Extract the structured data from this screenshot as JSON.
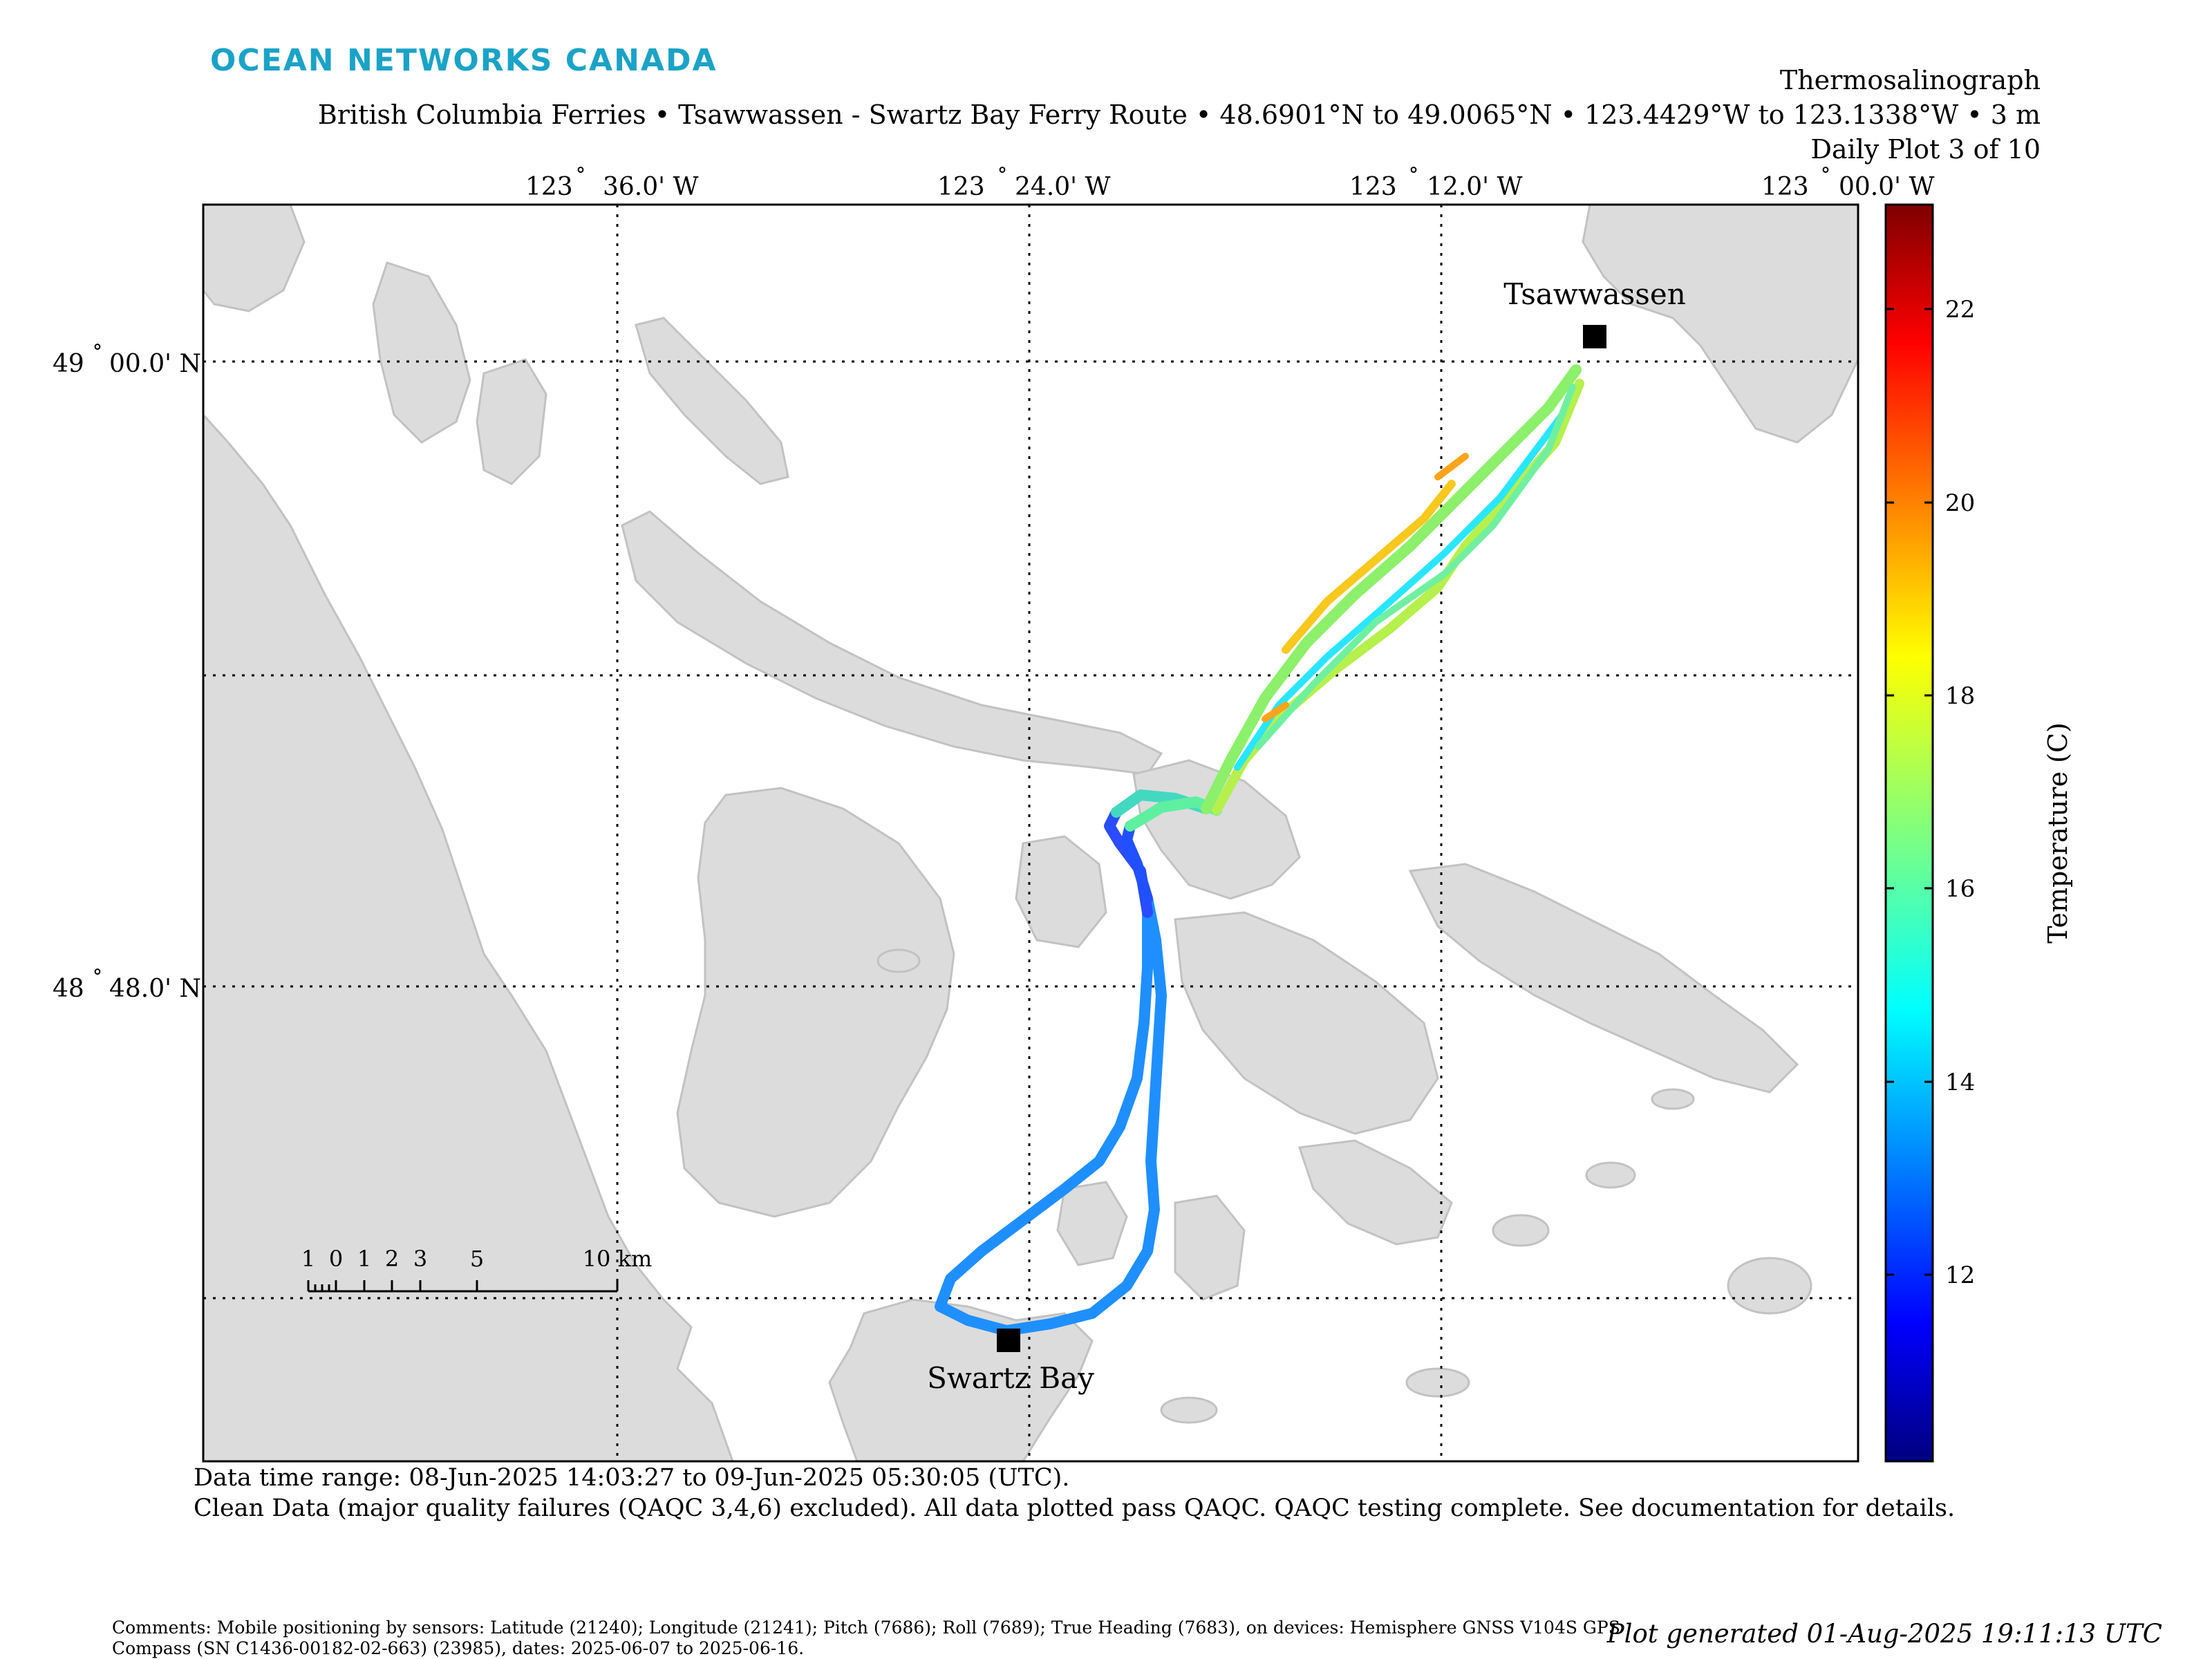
{
  "header": {
    "brand": "OCEAN NETWORKS CANADA",
    "title": "Thermosalinograph",
    "subtitle": "British Columbia Ferries • Tsawwassen - Swartz Bay Ferry Route • 48.6901°N to 49.0065°N • 123.4429°W to 123.1338°W • 3 m",
    "plot_index": "Daily Plot 3 of 10"
  },
  "map": {
    "lon_ticks": [
      {
        "deg": "123",
        "min": "36.0' W"
      },
      {
        "deg": "123",
        "min": "24.0' W"
      },
      {
        "deg": "123",
        "min": "12.0' W"
      },
      {
        "deg": "123",
        "min": "00.0' W"
      }
    ],
    "lat_ticks": [
      {
        "deg": "49",
        "min": "00.0' N"
      },
      {
        "deg": "48",
        "min": "48.0' N"
      }
    ],
    "stations": {
      "north": "Tsawwassen",
      "south": "Swartz Bay"
    },
    "scale_bar": {
      "labels": [
        "1",
        "0",
        "1",
        "2",
        "3",
        "5",
        "10 km"
      ]
    },
    "land_color": "#dcdcdc",
    "coast_color": "#c2c2c2"
  },
  "colorbar": {
    "label": "Temperature (C)",
    "ticks": [
      "22",
      "20",
      "18",
      "16",
      "14",
      "12"
    ],
    "colormap": "jet"
  },
  "footer": {
    "time_range": "Data time range: 08-Jun-2025 14:03:27 to 09-Jun-2025 05:30:05 (UTC).",
    "qaqc": "Clean Data (major quality failures (QAQC 3,4,6) excluded). All data plotted pass QAQC. QAQC testing complete. See documentation for details.",
    "comment_line1": "Comments: Mobile positioning by sensors: Latitude (21240); Longitude (21241); Pitch (7686); Roll (7689); True Heading (7683), on devices: Hemisphere GNSS V104S GPS",
    "comment_line2": "Compass (SN C1436-00182-02-663) (23985), dates: 2025-06-07 to 2025-06-16.",
    "generated": "Plot generated 01-Aug-2025 19:11:13 UTC"
  }
}
